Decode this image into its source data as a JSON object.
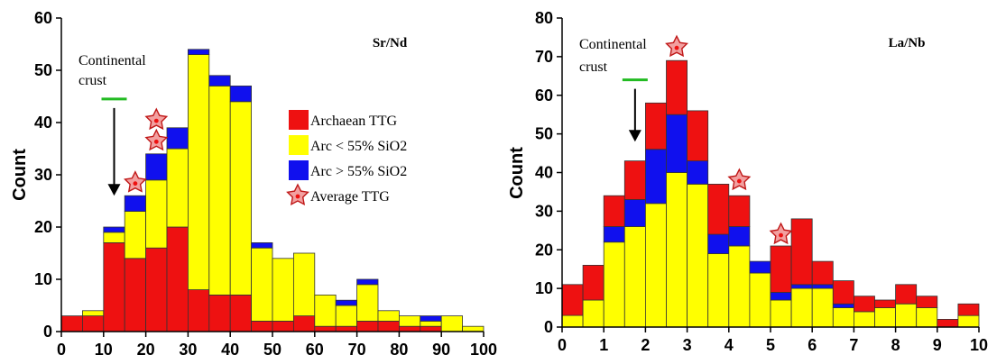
{
  "colors": {
    "archaean": "#ee1111",
    "arc_low": "#ffff00",
    "arc_high": "#1010ee",
    "crust_bar": "#22bb22"
  },
  "chart_data": [
    {
      "type": "bar",
      "subtype": "stacked-histogram",
      "title": "Sr/Nd",
      "xlabel": "",
      "ylabel": "Count",
      "xlim": [
        0,
        100
      ],
      "ylim": [
        0,
        60
      ],
      "xticks": [
        0,
        10,
        20,
        30,
        40,
        50,
        60,
        70,
        80,
        90,
        100
      ],
      "yticks": [
        0,
        10,
        20,
        30,
        40,
        50,
        60
      ],
      "bin_width": 5,
      "bin_starts": [
        0,
        5,
        10,
        15,
        20,
        25,
        30,
        35,
        40,
        45,
        50,
        55,
        60,
        65,
        70,
        75,
        80,
        85,
        90,
        95
      ],
      "series": [
        {
          "name": "Archaean TTG",
          "color": "archaean",
          "values": [
            3,
            3,
            17,
            14,
            16,
            20,
            8,
            7,
            7,
            2,
            2,
            3,
            1,
            1,
            2,
            2,
            1,
            1,
            0,
            0
          ]
        },
        {
          "name": "Arc < 55% SiO2",
          "color": "arc_low",
          "values": [
            0,
            1,
            2,
            9,
            13,
            15,
            45,
            40,
            37,
            14,
            12,
            12,
            6,
            4,
            7,
            2,
            2,
            1,
            3,
            1
          ]
        },
        {
          "name": "Arc > 55% SiO2",
          "color": "arc_high",
          "values": [
            0,
            0,
            1,
            3,
            5,
            4,
            1,
            2,
            3,
            1,
            0,
            0,
            0,
            1,
            1,
            0,
            0,
            1,
            0,
            0
          ]
        }
      ],
      "legend": {
        "position": "right",
        "entries": [
          "Archaean TTG",
          "Arc < 55% SiO2",
          "Arc > 55% SiO2",
          "Average TTG"
        ]
      },
      "average_ttg": [
        {
          "x": 17.5,
          "y": 28.5
        },
        {
          "x": 22.5,
          "y": 36.5
        },
        {
          "x": 22.5,
          "y": 40.5
        }
      ],
      "continental_crust": {
        "label_line1": "Continental",
        "label_line2": "crust",
        "x": 12.5,
        "y": 44.5,
        "arrow_to_y": 26
      }
    },
    {
      "type": "bar",
      "subtype": "stacked-histogram",
      "title": "La/Nb",
      "xlabel": "",
      "ylabel": "Count",
      "xlim": [
        0,
        10
      ],
      "ylim": [
        0,
        80
      ],
      "xticks": [
        0,
        1,
        2,
        3,
        4,
        5,
        6,
        7,
        8,
        9,
        10
      ],
      "yticks": [
        0,
        10,
        20,
        30,
        40,
        50,
        60,
        70,
        80
      ],
      "bin_width": 0.5,
      "bin_starts": [
        0,
        0.5,
        1,
        1.5,
        2,
        2.5,
        3,
        3.5,
        4,
        4.5,
        5,
        5.5,
        6,
        6.5,
        7,
        7.5,
        8,
        8.5,
        9,
        9.5
      ],
      "series": [
        {
          "name": "Arc < 55% SiO2",
          "color": "arc_low",
          "values": [
            3,
            7,
            22,
            26,
            32,
            40,
            37,
            19,
            21,
            14,
            7,
            10,
            10,
            5,
            4,
            5,
            6,
            5,
            0,
            3
          ]
        },
        {
          "name": "Arc > 55% SiO2",
          "color": "arc_high",
          "values": [
            0,
            0,
            4,
            7,
            14,
            15,
            6,
            5,
            5,
            3,
            2,
            1,
            1,
            1,
            0,
            0,
            0,
            0,
            0,
            0
          ]
        },
        {
          "name": "Archaean TTG",
          "color": "archaean",
          "values": [
            8,
            9,
            8,
            10,
            12,
            14,
            13,
            13,
            8,
            0,
            12,
            17,
            6,
            6,
            4,
            2,
            5,
            3,
            2,
            3
          ]
        }
      ],
      "average_ttg": [
        {
          "x": 2.75,
          "y": 72.5
        },
        {
          "x": 4.25,
          "y": 38
        },
        {
          "x": 5.25,
          "y": 24
        }
      ],
      "continental_crust": {
        "label_line1": "Continental",
        "label_line2": "crust",
        "x": 1.75,
        "y": 64,
        "arrow_to_y": 48
      }
    }
  ]
}
